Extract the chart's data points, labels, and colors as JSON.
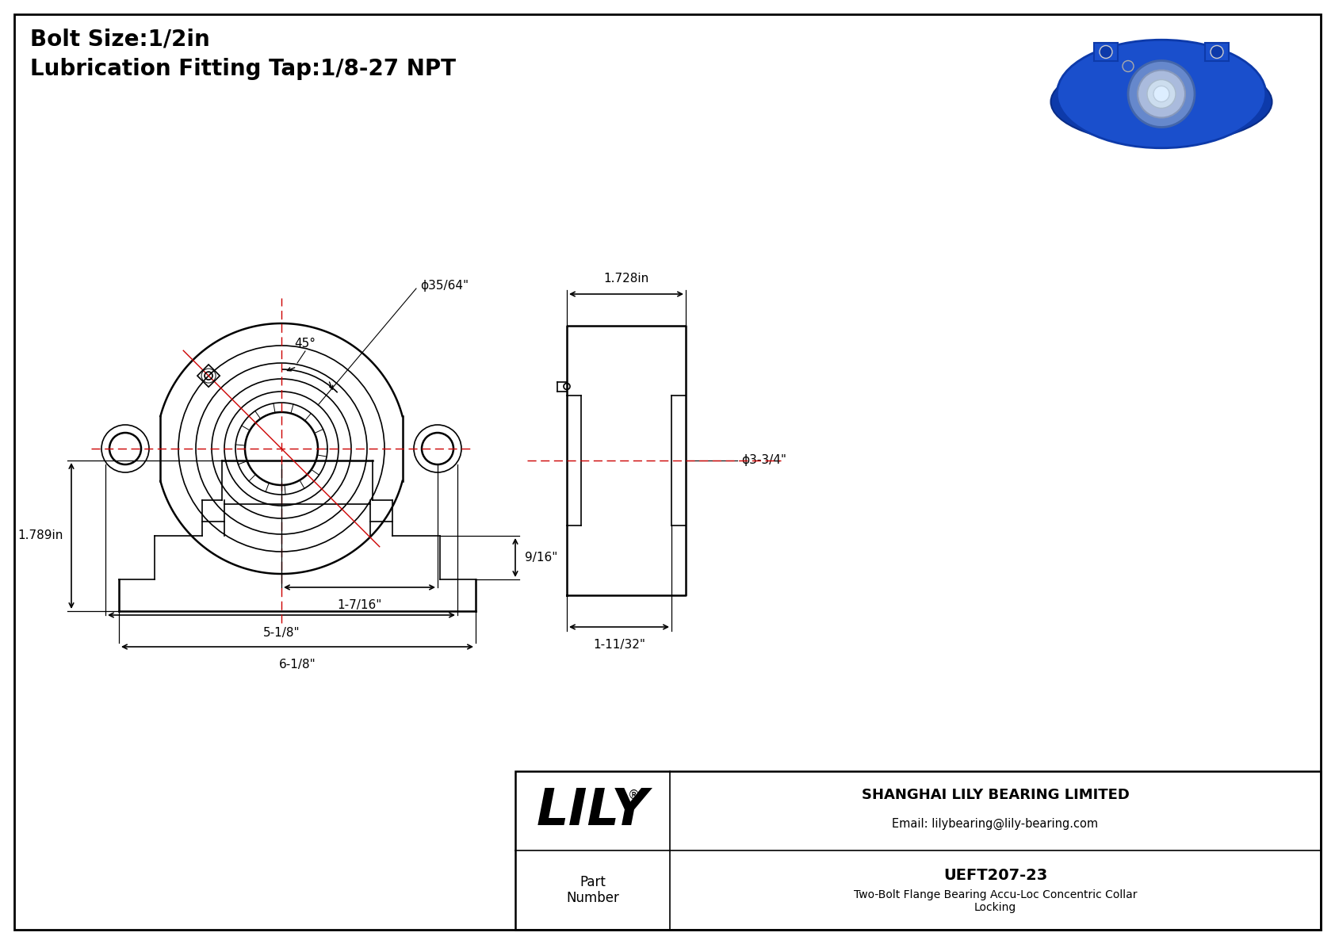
{
  "bg_color": "#ffffff",
  "line_color": "#000000",
  "red_color": "#cc0000",
  "title_line1": "Bolt Size:1/2in",
  "title_line2": "Lubrication Fitting Tap:1/8-27 NPT",
  "title_fontsize": 20,
  "dim_fontsize": 11,
  "company_name": "SHANGHAI LILY BEARING LIMITED",
  "company_email": "Email: lilybearing@lily-bearing.com",
  "part_label": "Part\nNumber",
  "part_number": "UEFT207-23",
  "part_desc": "Two-Bolt Flange Bearing Accu-Loc Concentric Collar\nLocking",
  "brand": "LILY",
  "brand_reg": "®",
  "dims": {
    "bolt_hole_angle": "45°",
    "bore_dia": "ϕ35/64\"",
    "bolt_circle": "5-1/8\"",
    "bolt_offset": "1-7/16\"",
    "side_width": "1.728in",
    "side_dia": "ϕ3-3/4\"",
    "side_depth": "1-11/32\"",
    "front_height": "1.789in",
    "front_width": "6-1/8\"",
    "front_step": "9/16\""
  }
}
